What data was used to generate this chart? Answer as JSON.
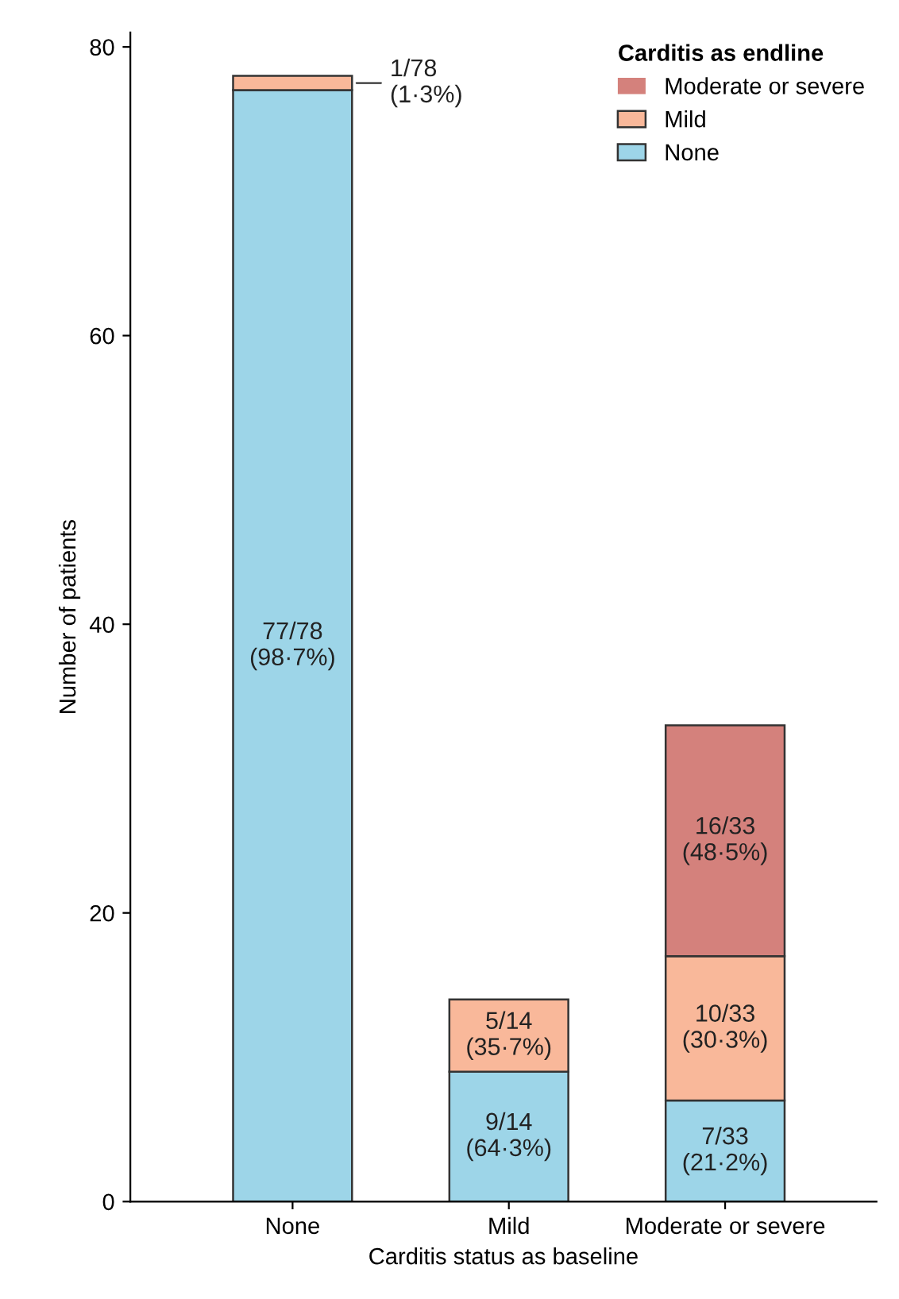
{
  "chart_data": {
    "type": "bar",
    "stacked": true,
    "xlabel": "Carditis status as baseline",
    "ylabel": "Number of patients",
    "legend_title": "Carditis as endline",
    "legend": "top right",
    "categories": [
      "None",
      "Mild",
      "Moderate or severe"
    ],
    "ylim": [
      0,
      81
    ],
    "yticks": [
      0,
      20,
      40,
      60,
      80
    ],
    "series": [
      {
        "name": "None",
        "color": "#9dd5e8",
        "values": [
          77,
          9,
          7
        ],
        "value_labels": [
          "77/78\n(98·7%)",
          "9/14\n(64·3%)",
          "7/33\n(21·2%)"
        ]
      },
      {
        "name": "Mild",
        "color": "#f9b89a",
        "values": [
          1,
          5,
          10
        ],
        "value_labels": [
          "1/78\n(1·3%)",
          "5/14\n(35·7%)",
          "10/33\n(30·3%)"
        ]
      },
      {
        "name": "Moderate or severe",
        "color": "#d4817c",
        "values": [
          0,
          0,
          16
        ],
        "value_labels": [
          null,
          null,
          "16/33\n(48·5%)"
        ]
      }
    ]
  }
}
